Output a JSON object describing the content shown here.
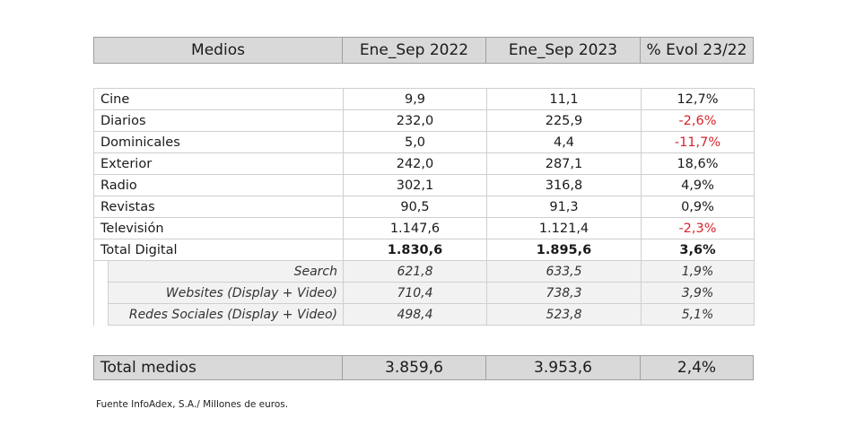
{
  "header": {
    "col_medios": "Medios",
    "col_2022": "Ene_Sep 2022",
    "col_2023": "Ene_Sep 2023",
    "col_evol": "% Evol 23/22"
  },
  "rows": [
    {
      "label": "Cine",
      "v2022": "9,9",
      "v2023": "11,1",
      "evol": "12,7%"
    },
    {
      "label": "Diarios",
      "v2022": "232,0",
      "v2023": "225,9",
      "evol": "-2,6%"
    },
    {
      "label": "Dominicales",
      "v2022": "5,0",
      "v2023": "4,4",
      "evol": "-11,7%"
    },
    {
      "label": "Exterior",
      "v2022": "242,0",
      "v2023": "287,1",
      "evol": "18,6%"
    },
    {
      "label": "Radio",
      "v2022": "302,1",
      "v2023": "316,8",
      "evol": "4,9%"
    },
    {
      "label": "Revistas",
      "v2022": "90,5",
      "v2023": "91,3",
      "evol": "0,9%"
    },
    {
      "label": "Televisión",
      "v2022": "1.147,6",
      "v2023": "1.121,4",
      "evol": "-2,3%"
    }
  ],
  "total_digital": {
    "label": "Total Digital",
    "v2022": "1.830,6",
    "v2023": "1.895,6",
    "evol": "3,6%"
  },
  "digital_sub": [
    {
      "label": "Search",
      "v2022": "621,8",
      "v2023": "633,5",
      "evol": "1,9%"
    },
    {
      "label": "Websites (Display + Video)",
      "v2022": "710,4",
      "v2023": "738,3",
      "evol": "3,9%"
    },
    {
      "label": "Redes Sociales (Display + Video)",
      "v2022": "498,4",
      "v2023": "523,8",
      "evol": "5,1%"
    }
  ],
  "total_medios": {
    "label": "Total medios",
    "v2022": "3.859,6",
    "v2023": "3.953,6",
    "evol": "2,4%"
  },
  "source": "Fuente InfoAdex, S.A./ Millones de euros.",
  "colors": {
    "negative": "#d9242b",
    "header_bg": "#d9d9d9",
    "sub_bg": "#f2f2f2"
  }
}
